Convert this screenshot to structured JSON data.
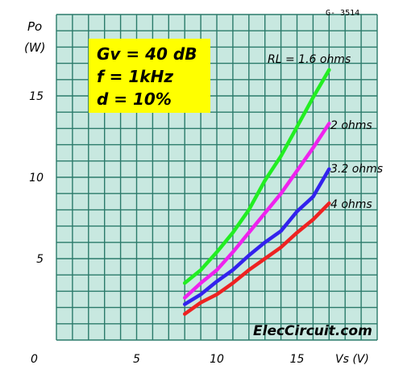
{
  "chart_data": {
    "type": "line",
    "code": "G- 3514",
    "y_axis": {
      "label_top": "Po",
      "label_unit": "(W)",
      "ticks": [
        5,
        10,
        15
      ],
      "lim": [
        0,
        20
      ]
    },
    "x_axis": {
      "origin_label": "0",
      "label": "Vs (V)",
      "ticks": [
        5,
        10,
        15
      ],
      "lim": [
        0,
        20
      ]
    },
    "conditions": [
      "Gv = 40 dB",
      "f = 1kHz",
      "d = 10%"
    ],
    "watermark": "ElecCircuit.com",
    "colors": {
      "box": "#ffff00",
      "grid_bg": "#c8e8e0",
      "grid_line": "#2a7a6a"
    },
    "series": [
      {
        "name": "RL = 1.6 ohms",
        "color": "#22ee22",
        "x": [
          8,
          9,
          10,
          11,
          12,
          13,
          14,
          15,
          16,
          17
        ],
        "y": [
          3.5,
          4.3,
          5.4,
          6.6,
          8.0,
          9.8,
          11.3,
          13.1,
          14.9,
          16.6
        ]
      },
      {
        "name": "2 ohms",
        "color": "#ee22ee",
        "x": [
          8,
          9,
          10,
          11,
          12,
          13,
          14,
          15,
          16,
          17
        ],
        "y": [
          2.6,
          3.5,
          4.3,
          5.4,
          6.6,
          7.8,
          9.0,
          10.4,
          11.8,
          13.3
        ]
      },
      {
        "name": "3.2 ohms",
        "color": "#3322ee",
        "x": [
          8,
          9,
          10,
          11,
          12,
          13,
          14,
          15,
          16,
          17
        ],
        "y": [
          2.2,
          2.8,
          3.6,
          4.3,
          5.2,
          6.0,
          6.7,
          7.9,
          8.8,
          10.5
        ]
      },
      {
        "name": "4 ohms",
        "color": "#ee2222",
        "x": [
          8,
          9,
          10,
          11,
          12,
          13,
          14,
          15,
          16,
          17
        ],
        "y": [
          1.6,
          2.3,
          2.8,
          3.5,
          4.3,
          5.0,
          5.7,
          6.6,
          7.4,
          8.4
        ]
      }
    ]
  }
}
